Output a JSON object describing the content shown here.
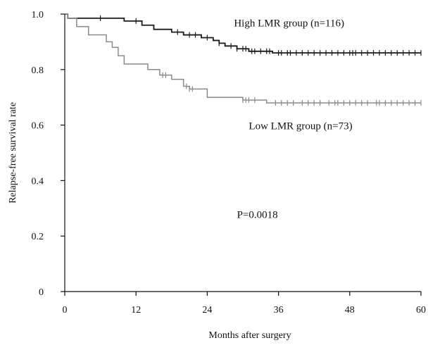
{
  "chart_data": {
    "type": "line",
    "chart_kind": "kaplan-meier",
    "xlabel": "Months after surgery",
    "ylabel": "Relapse-free survival rate",
    "xlim": [
      0,
      60
    ],
    "ylim": [
      0,
      1.0
    ],
    "x_ticks": [
      0,
      12,
      24,
      36,
      48,
      60
    ],
    "y_ticks": [
      0,
      0.2,
      0.4,
      0.6,
      0.8,
      1.0
    ],
    "y_tick_labels": [
      "0",
      "0.2",
      "0.4",
      "0.6",
      "0.8",
      "1.0"
    ],
    "grid": false,
    "series": [
      {
        "name": "High LMR group (n=116)",
        "color": "#1a1a1a",
        "steps": [
          [
            0,
            1.0
          ],
          [
            0.5,
            0.985
          ],
          [
            10,
            0.975
          ],
          [
            13,
            0.96
          ],
          [
            15,
            0.945
          ],
          [
            18,
            0.935
          ],
          [
            20,
            0.925
          ],
          [
            23,
            0.915
          ],
          [
            25,
            0.905
          ],
          [
            26,
            0.895
          ],
          [
            27,
            0.885
          ],
          [
            29,
            0.875
          ],
          [
            31,
            0.866
          ],
          [
            35,
            0.86
          ],
          [
            60,
            0.86
          ]
        ],
        "censor_x": [
          6,
          12,
          19,
          21,
          22,
          24,
          26,
          28,
          29,
          30,
          30.5,
          31.5,
          32,
          33,
          34,
          34.5,
          36,
          36.5,
          37.5,
          38,
          39,
          40,
          41,
          42,
          43,
          44,
          45,
          46,
          47,
          48,
          48.5,
          49,
          50,
          51,
          52,
          53,
          54,
          55,
          56,
          57,
          58,
          59,
          60
        ]
      },
      {
        "name": "Low LMR group (n=73)",
        "color": "#8a8a8a",
        "steps": [
          [
            0,
            1.0
          ],
          [
            0.5,
            0.985
          ],
          [
            2,
            0.955
          ],
          [
            4,
            0.925
          ],
          [
            7,
            0.9
          ],
          [
            8,
            0.88
          ],
          [
            9,
            0.85
          ],
          [
            10,
            0.82
          ],
          [
            14,
            0.8
          ],
          [
            16,
            0.78
          ],
          [
            18,
            0.765
          ],
          [
            20,
            0.74
          ],
          [
            21,
            0.73
          ],
          [
            24,
            0.7
          ],
          [
            30,
            0.69
          ],
          [
            34,
            0.68
          ],
          [
            60,
            0.68
          ]
        ],
        "censor_x": [
          16.5,
          17,
          20.5,
          21,
          21.5,
          30,
          30.5,
          31,
          32,
          35.5,
          36.5,
          37.5,
          38.5,
          40,
          41,
          42,
          43,
          44.5,
          45.5,
          46,
          47,
          48,
          49,
          50,
          51,
          52.5,
          53,
          54,
          55,
          56,
          57,
          58,
          59,
          60
        ]
      }
    ],
    "annotations": [
      {
        "text": "High LMR group (n=116)",
        "x": 28.5,
        "y": 0.955
      },
      {
        "text": "Low LMR group (n=73)",
        "x": 31,
        "y": 0.585
      },
      {
        "text": "P=0.0018",
        "x": 29,
        "y": 0.265
      }
    ]
  }
}
